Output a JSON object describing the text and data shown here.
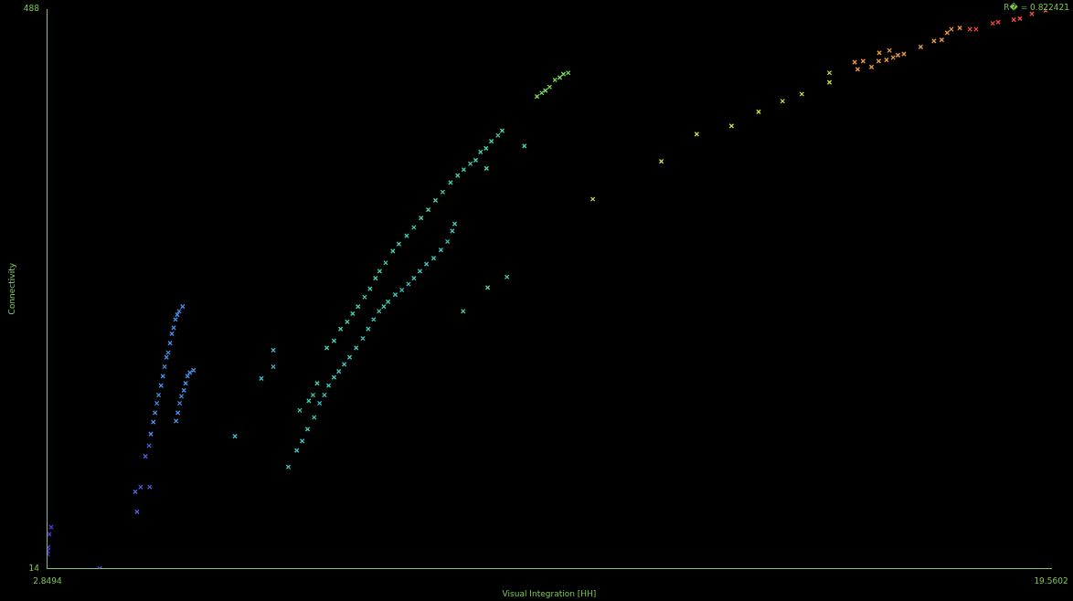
{
  "chart_data": {
    "type": "scatter",
    "xlabel": "Visual Integration [HH]",
    "ylabel": "Connectivity",
    "xlim": [
      2.8494,
      19.5602
    ],
    "ylim": [
      14,
      488
    ],
    "xticks": [
      2.8494,
      19.5602
    ],
    "yticks": [
      14,
      488
    ],
    "grid": false,
    "legend": false,
    "marker": "cross",
    "annotations": [
      "R� = 0.822421"
    ],
    "series": [
      {
        "color": "#4a3ccf",
        "x": [
          2.85,
          2.85,
          2.86,
          2.88,
          2.91,
          3.72
        ],
        "values": [
          26,
          29,
          32,
          43,
          49,
          14
        ]
      },
      {
        "color": "#4f5ee0",
        "x": [
          4.31,
          4.4,
          4.55,
          4.34,
          4.48,
          4.54
        ],
        "values": [
          79,
          83,
          83,
          62,
          109,
          118
        ]
      },
      {
        "color": "#4a8fe6",
        "x": [
          4.57,
          4.61,
          4.64,
          4.67,
          4.7,
          4.74,
          4.77,
          4.8,
          4.83,
          4.86,
          4.89,
          4.92,
          4.95,
          4.98,
          5.01,
          5.04,
          5.1,
          4.99,
          5.02,
          5.05,
          5.08,
          5.12,
          5.15,
          5.18,
          5.22,
          5.28
        ],
        "values": [
          128,
          138,
          146,
          154,
          161,
          169,
          177,
          185,
          193,
          197,
          205,
          213,
          218,
          225,
          229,
          232,
          236,
          139,
          146,
          154,
          160,
          165,
          171,
          177,
          180,
          182
        ]
      },
      {
        "color": "#3fb8c8",
        "x": [
          5.97,
          6.41,
          6.61,
          6.61
        ],
        "values": [
          126,
          175,
          199,
          185
        ]
      },
      {
        "color": "#3fc9bf",
        "x": [
          6.86,
          7.0,
          7.09,
          7.18,
          7.29,
          7.38,
          7.46,
          7.53,
          7.62,
          7.7,
          7.79,
          7.88,
          7.99,
          8.1,
          8.19,
          8.28,
          8.37,
          8.45,
          8.52,
          8.64,
          8.75,
          8.86,
          8.95,
          9.05,
          9.16,
          9.28,
          9.4,
          9.51,
          9.59,
          9.63
        ],
        "values": [
          100,
          114,
          122,
          132,
          142,
          154,
          161,
          169,
          176,
          181,
          187,
          193,
          201,
          209,
          217,
          225,
          232,
          236,
          240,
          246,
          250,
          255,
          260,
          266,
          272,
          277,
          284,
          291,
          300,
          306
        ]
      },
      {
        "color": "#45d0b0",
        "x": [
          7.05,
          7.2,
          7.27,
          7.34,
          7.5,
          7.62,
          7.73,
          7.84,
          7.93,
          8.02,
          8.13,
          8.22,
          8.31,
          8.38,
          8.48,
          8.6,
          8.7,
          8.83,
          8.95,
          9.07,
          9.19,
          9.31,
          9.43,
          9.56,
          9.68,
          9.78,
          9.89,
          9.98,
          10.06,
          10.15,
          10.24,
          10.35,
          10.42
        ],
        "values": [
          148,
          156,
          161,
          171,
          201,
          207,
          217,
          223,
          230,
          236,
          244,
          251,
          260,
          266,
          273,
          283,
          289,
          296,
          303,
          311,
          318,
          326,
          333,
          341,
          347,
          352,
          357,
          360,
          367,
          370,
          376,
          381,
          385
        ]
      },
      {
        "color": "#4fd89a",
        "x": [
          9.77,
          10.18,
          10.5,
          10.16,
          10.79
        ],
        "values": [
          232,
          252,
          261,
          353,
          372
        ]
      },
      {
        "color": "#7be05a",
        "x": [
          11.0,
          11.08,
          11.14,
          11.21,
          11.3,
          11.38,
          11.44,
          11.52
        ],
        "values": [
          414,
          417,
          419,
          422,
          428,
          430,
          433,
          434
        ]
      },
      {
        "color": "#c8e048",
        "x": [
          11.93,
          13.07,
          13.66,
          14.24,
          14.69,
          15.09,
          15.41,
          15.87,
          15.87
        ],
        "values": [
          327,
          359,
          382,
          389,
          401,
          410,
          416,
          426,
          434
        ]
      },
      {
        "color": "#f09a40",
        "x": [
          16.34,
          16.29,
          16.43,
          16.57,
          16.69,
          16.7,
          16.82,
          16.93,
          16.87,
          17.01,
          17.11,
          17.39,
          17.61,
          17.74,
          17.83,
          17.9,
          18.04
        ],
        "values": [
          437,
          443,
          444,
          439,
          444,
          451,
          445,
          447,
          453,
          449,
          450,
          456,
          461,
          462,
          468,
          471,
          472
        ]
      },
      {
        "color": "#f0503c",
        "x": [
          18.21,
          18.31,
          18.59,
          18.68,
          18.94,
          19.04,
          19.24,
          19.47
        ],
        "values": [
          471,
          471,
          476,
          477,
          479,
          480,
          484,
          487
        ]
      }
    ]
  }
}
